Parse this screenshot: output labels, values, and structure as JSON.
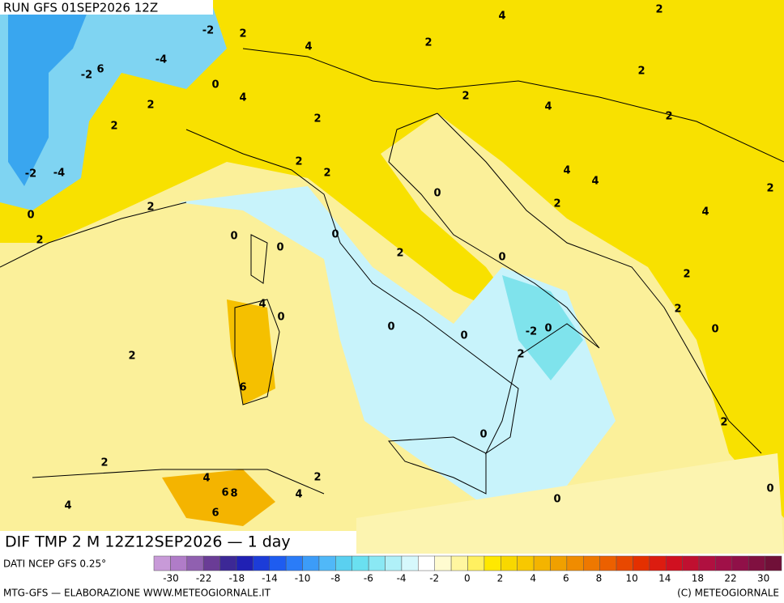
{
  "header": {
    "run": "RUN GFS 01SEP2026 12Z"
  },
  "map": {
    "contour_labels": [
      "4",
      "2",
      "-2",
      "2",
      "4",
      "2",
      "-4",
      "-2",
      "6",
      "0",
      "2",
      "4",
      "2",
      "4",
      "2",
      "2",
      "2",
      "2",
      "2",
      "2",
      "-2",
      "-4",
      "4",
      "4",
      "2",
      "0",
      "2",
      "2",
      "4",
      "0",
      "0",
      "0",
      "2",
      "0",
      "0",
      "2",
      "2",
      "4",
      "0",
      "2",
      "0",
      "0",
      "-2",
      "0",
      "0",
      "2",
      "2",
      "6",
      "2",
      "0",
      "2",
      "4",
      "2",
      "6",
      "8",
      "4",
      "0",
      "0",
      "4",
      "6"
    ]
  },
  "footer": {
    "field": "DIF TMP 2 M 12Z12SEP2026 — 1 day",
    "source": "DATI NCEP GFS 0.25°",
    "credit": "MTG-GFS — ELABORAZIONE WWW.METEOGIORNALE.IT",
    "copyright": "(C) METEOGIORNALE"
  },
  "colorbar": {
    "labels": [
      -30,
      -22,
      -18,
      -14,
      -10,
      -8,
      -6,
      -4,
      -2,
      0,
      2,
      4,
      6,
      8,
      10,
      14,
      18,
      22,
      30
    ]
  }
}
